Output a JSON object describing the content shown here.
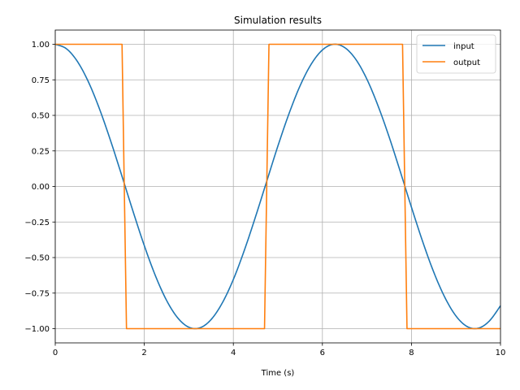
{
  "chart_data": {
    "type": "line",
    "title": "Simulation results",
    "xlabel": "Time (s)",
    "ylabel": "",
    "xlim": [
      0,
      10
    ],
    "ylim": [
      -1.1,
      1.1
    ],
    "x_ticks": [
      0,
      2,
      4,
      6,
      8,
      10
    ],
    "x_tick_labels": [
      "0",
      "2",
      "4",
      "6",
      "8",
      "10"
    ],
    "y_ticks": [
      -1.0,
      -0.75,
      -0.5,
      -0.25,
      0.0,
      0.25,
      0.5,
      0.75,
      1.0
    ],
    "y_tick_labels": [
      "−1.00",
      "−0.75",
      "−0.50",
      "−0.25",
      "0.00",
      "0.25",
      "0.50",
      "0.75",
      "1.00"
    ],
    "grid": true,
    "legend_position": "top-right",
    "series": [
      {
        "name": "input",
        "color": "#1f77b4",
        "x": [
          0,
          0.25,
          0.5,
          0.75,
          1.0,
          1.25,
          1.5,
          1.75,
          2.0,
          2.25,
          2.5,
          2.75,
          3.0,
          3.25,
          3.5,
          3.75,
          4.0,
          4.25,
          4.5,
          4.75,
          5.0,
          5.25,
          5.5,
          5.75,
          6.0,
          6.25,
          6.5,
          6.75,
          7.0,
          7.25,
          7.5,
          7.75,
          8.0,
          8.25,
          8.5,
          8.75,
          9.0,
          9.25,
          9.5,
          9.75,
          10.0
        ],
        "values": [
          1.0,
          0.969,
          0.878,
          0.732,
          0.54,
          0.315,
          0.071,
          -0.178,
          -0.416,
          -0.628,
          -0.801,
          -0.924,
          -0.99,
          -0.994,
          -0.936,
          -0.82,
          -0.654,
          -0.446,
          -0.211,
          0.037,
          0.284,
          0.512,
          0.709,
          0.861,
          0.96,
          1.0,
          0.977,
          0.894,
          0.754,
          0.567,
          0.347,
          0.104,
          -0.146,
          -0.386,
          -0.602,
          -0.78,
          -0.911,
          -0.985,
          -0.997,
          -0.946,
          -0.839
        ]
      },
      {
        "name": "output",
        "color": "#ff7f0e",
        "x": [
          0,
          1.5,
          1.6,
          4.7,
          4.8,
          7.8,
          7.9,
          10.0
        ],
        "values": [
          1.0,
          1.0,
          -1.0,
          -1.0,
          1.0,
          1.0,
          -1.0,
          -1.0
        ]
      }
    ]
  }
}
